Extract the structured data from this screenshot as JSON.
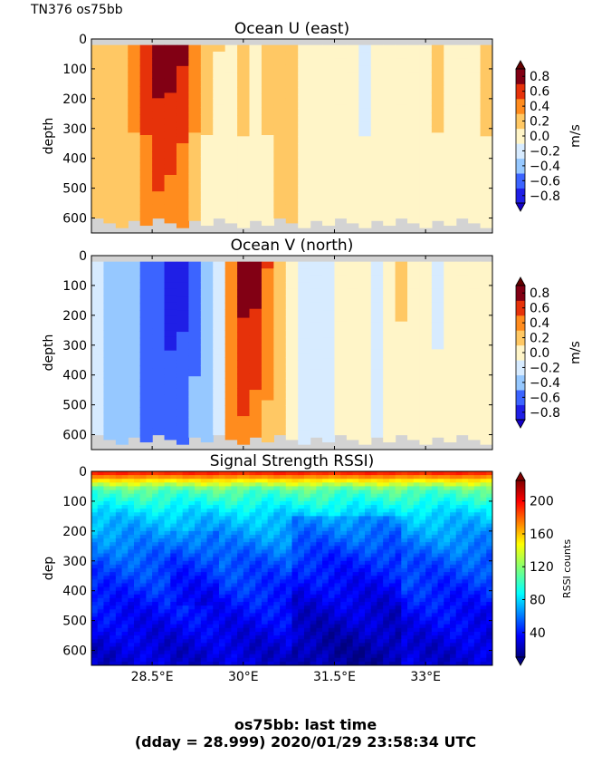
{
  "header": {
    "cruise_label": "TN376 os75bb"
  },
  "footer": {
    "line1": "os75bb: last time",
    "line2": "(dday = 28.999) 2020/01/29 23:58:34 UTC"
  },
  "colors": {
    "velocity_levels": [
      "#1f1fe6",
      "#3c64ff",
      "#96c8ff",
      "#d7ebff",
      "#fff5c8",
      "#ffc864",
      "#ff8c1e",
      "#e6320a",
      "#820014"
    ],
    "missing": "#d3d3d3"
  },
  "chart_data": [
    {
      "type": "heatmap",
      "title": "Ocean U (east)",
      "ylabel": "depth",
      "ylim": [
        650,
        0
      ],
      "yticks": [
        0,
        100,
        200,
        300,
        400,
        500,
        600
      ],
      "xlim": [
        27.5,
        34.1
      ],
      "xticks": [
        28.5,
        30,
        31.5,
        33
      ],
      "colorbar": {
        "label": "m/s",
        "ticks": [
          0.8,
          0.6,
          0.4,
          0.2,
          0.0,
          -0.2,
          -0.4,
          -0.6,
          -0.8
        ],
        "tick_labels": [
          "0.8",
          "0.6",
          "0.4",
          "0.2",
          "0.0",
          "−0.2",
          "−0.4",
          "−0.6",
          "−0.8"
        ]
      },
      "columns": [
        {
          "x": 27.6,
          "top": 0.2,
          "bottom": 0.3
        },
        {
          "x": 27.8,
          "top": 0.25,
          "bottom": 0.3
        },
        {
          "x": 28.0,
          "top": 0.3,
          "bottom": 0.3
        },
        {
          "x": 28.2,
          "top": 0.45,
          "bottom": 0.35
        },
        {
          "x": 28.4,
          "top": 0.7,
          "bottom": 0.5
        },
        {
          "x": 28.6,
          "top": 0.9,
          "bottom": 0.55
        },
        {
          "x": 28.8,
          "top": 0.9,
          "bottom": 0.5
        },
        {
          "x": 29.0,
          "top": 0.85,
          "bottom": 0.4
        },
        {
          "x": 29.2,
          "top": 0.5,
          "bottom": 0.3
        },
        {
          "x": 29.4,
          "top": 0.3,
          "bottom": 0.1
        },
        {
          "x": 29.6,
          "top": 0.2,
          "bottom": 0.1
        },
        {
          "x": 29.8,
          "top": 0.15,
          "bottom": 0.1
        },
        {
          "x": 30.0,
          "top": 0.25,
          "bottom": 0.15
        },
        {
          "x": 30.2,
          "top": 0.1,
          "bottom": 0.1
        },
        {
          "x": 30.4,
          "top": 0.25,
          "bottom": 0.15
        },
        {
          "x": 30.6,
          "top": 0.3,
          "bottom": 0.25
        },
        {
          "x": 30.8,
          "top": 0.25,
          "bottom": 0.2
        },
        {
          "x": 31.0,
          "top": 0.15,
          "bottom": 0.1
        },
        {
          "x": 31.2,
          "top": 0.1,
          "bottom": 0.05
        },
        {
          "x": 31.4,
          "top": 0.1,
          "bottom": 0.1
        },
        {
          "x": 31.6,
          "top": 0.15,
          "bottom": 0.1
        },
        {
          "x": 31.8,
          "top": 0.1,
          "bottom": 0.05
        },
        {
          "x": 32.0,
          "top": -0.05,
          "bottom": 0.05
        },
        {
          "x": 32.2,
          "top": 0.05,
          "bottom": 0.05
        },
        {
          "x": 32.4,
          "top": 0.15,
          "bottom": 0.1
        },
        {
          "x": 32.6,
          "top": 0.1,
          "bottom": 0.1
        },
        {
          "x": 32.8,
          "top": 0.05,
          "bottom": 0.05
        },
        {
          "x": 33.0,
          "top": 0.1,
          "bottom": 0.05
        },
        {
          "x": 33.2,
          "top": 0.25,
          "bottom": 0.15
        },
        {
          "x": 33.4,
          "top": 0.1,
          "bottom": 0.05
        },
        {
          "x": 33.6,
          "top": 0.1,
          "bottom": 0.05
        },
        {
          "x": 33.8,
          "top": 0.1,
          "bottom": 0.05
        },
        {
          "x": 34.0,
          "top": 0.3,
          "bottom": 0.1
        }
      ]
    },
    {
      "type": "heatmap",
      "title": "Ocean V (north)",
      "ylabel": "depth",
      "ylim": [
        650,
        0
      ],
      "yticks": [
        0,
        100,
        200,
        300,
        400,
        500,
        600
      ],
      "xlim": [
        27.5,
        34.1
      ],
      "xticks": [
        28.5,
        30,
        31.5,
        33
      ],
      "colorbar": {
        "label": "m/s",
        "ticks": [
          0.8,
          0.6,
          0.4,
          0.2,
          0.0,
          -0.2,
          -0.4,
          -0.6,
          -0.8
        ],
        "tick_labels": [
          "0.8",
          "0.6",
          "0.4",
          "0.2",
          "0.0",
          "−0.2",
          "−0.4",
          "−0.6",
          "−0.8"
        ]
      },
      "columns": [
        {
          "x": 27.6,
          "top": -0.15,
          "bottom": -0.1
        },
        {
          "x": 27.8,
          "top": -0.3,
          "bottom": -0.25
        },
        {
          "x": 28.0,
          "top": -0.3,
          "bottom": -0.25
        },
        {
          "x": 28.2,
          "top": -0.35,
          "bottom": -0.3
        },
        {
          "x": 28.4,
          "top": -0.5,
          "bottom": -0.45
        },
        {
          "x": 28.6,
          "top": -0.6,
          "bottom": -0.5
        },
        {
          "x": 28.8,
          "top": -0.7,
          "bottom": -0.5
        },
        {
          "x": 29.0,
          "top": -0.7,
          "bottom": -0.45
        },
        {
          "x": 29.2,
          "top": -0.5,
          "bottom": -0.35
        },
        {
          "x": 29.4,
          "top": -0.3,
          "bottom": -0.25
        },
        {
          "x": 29.6,
          "top": -0.1,
          "bottom": -0.1
        },
        {
          "x": 29.8,
          "top": 0.5,
          "bottom": 0.45
        },
        {
          "x": 30.0,
          "top": 0.9,
          "bottom": 0.55
        },
        {
          "x": 30.2,
          "top": 0.9,
          "bottom": 0.5
        },
        {
          "x": 30.4,
          "top": 0.6,
          "bottom": 0.35
        },
        {
          "x": 30.6,
          "top": 0.3,
          "bottom": 0.25
        },
        {
          "x": 30.8,
          "top": 0.1,
          "bottom": 0.05
        },
        {
          "x": 31.0,
          "top": -0.05,
          "bottom": -0.05
        },
        {
          "x": 31.2,
          "top": -0.1,
          "bottom": -0.05
        },
        {
          "x": 31.4,
          "top": -0.05,
          "bottom": -0.05
        },
        {
          "x": 31.6,
          "top": 0.05,
          "bottom": 0.05
        },
        {
          "x": 31.8,
          "top": 0.1,
          "bottom": 0.05
        },
        {
          "x": 32.0,
          "top": 0.05,
          "bottom": 0.05
        },
        {
          "x": 32.2,
          "top": -0.05,
          "bottom": -0.05
        },
        {
          "x": 32.4,
          "top": 0.1,
          "bottom": 0.05
        },
        {
          "x": 32.6,
          "top": 0.25,
          "bottom": 0.1
        },
        {
          "x": 32.8,
          "top": 0.15,
          "bottom": 0.05
        },
        {
          "x": 33.0,
          "top": 0.05,
          "bottom": 0.05
        },
        {
          "x": 33.2,
          "top": -0.05,
          "bottom": 0.05
        },
        {
          "x": 33.4,
          "top": 0.05,
          "bottom": 0.05
        },
        {
          "x": 33.6,
          "top": 0.1,
          "bottom": 0.05
        },
        {
          "x": 33.8,
          "top": 0.1,
          "bottom": 0.05
        },
        {
          "x": 34.0,
          "top": 0.1,
          "bottom": 0.05
        }
      ]
    },
    {
      "type": "heatmap",
      "title": "Signal Strength RSSI)",
      "ylabel": "dep",
      "ylim": [
        650,
        0
      ],
      "yticks": [
        0,
        100,
        200,
        300,
        400,
        500,
        600
      ],
      "xlim": [
        27.5,
        34.1
      ],
      "xticks": [
        28.5,
        30,
        31.5,
        33
      ],
      "xtick_labels": [
        "28.5°E",
        "30°E",
        "31.5°E",
        "33°E"
      ],
      "colorbar": {
        "label": "RSSI counts",
        "ticks": [
          200,
          160,
          120,
          80,
          40
        ],
        "range": [
          10,
          225
        ]
      },
      "profile": [
        {
          "depth": 0,
          "value": 200
        },
        {
          "depth": 30,
          "value": 150
        },
        {
          "depth": 60,
          "value": 110
        },
        {
          "depth": 150,
          "value": 80
        },
        {
          "depth": 300,
          "value": 55
        },
        {
          "depth": 450,
          "value": 40
        },
        {
          "depth": 600,
          "value": 28
        }
      ]
    }
  ]
}
